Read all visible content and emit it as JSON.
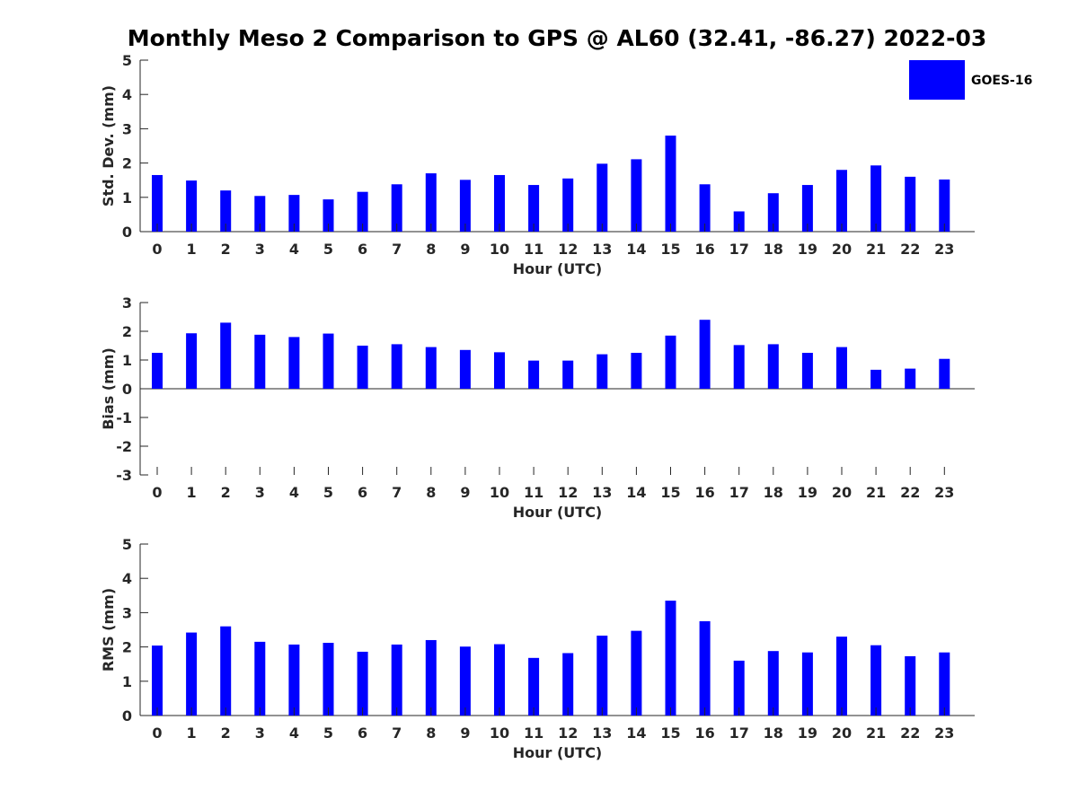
{
  "title": "Monthly Meso 2 Comparison to GPS @ AL60 (32.41, -86.27) 2022-03",
  "legend": {
    "label": "GOES-16",
    "position": "top-right"
  },
  "colors": {
    "bar": "#0000ff",
    "axis": "#262626"
  },
  "chart_data": [
    {
      "type": "bar",
      "categories": [
        "0",
        "1",
        "2",
        "3",
        "4",
        "5",
        "6",
        "7",
        "8",
        "9",
        "10",
        "11",
        "12",
        "13",
        "14",
        "15",
        "16",
        "17",
        "18",
        "19",
        "20",
        "21",
        "22",
        "23"
      ],
      "series": [
        {
          "name": "GOES-16",
          "values": [
            1.65,
            1.49,
            1.2,
            1.04,
            1.07,
            0.94,
            1.16,
            1.38,
            1.7,
            1.51,
            1.65,
            1.36,
            1.55,
            1.98,
            2.11,
            2.8,
            1.38,
            0.59,
            1.12,
            1.36,
            1.8,
            1.93,
            1.6,
            1.52
          ]
        }
      ],
      "xlabel": "Hour (UTC)",
      "ylabel": "Std. Dev. (mm)",
      "ylim": [
        0,
        5
      ],
      "yticks": [
        "0",
        "1",
        "2",
        "3",
        "4",
        "5"
      ],
      "grid": false
    },
    {
      "type": "bar",
      "categories": [
        "0",
        "1",
        "2",
        "3",
        "4",
        "5",
        "6",
        "7",
        "8",
        "9",
        "10",
        "11",
        "12",
        "13",
        "14",
        "15",
        "16",
        "17",
        "18",
        "19",
        "20",
        "21",
        "22",
        "23"
      ],
      "series": [
        {
          "name": "GOES-16",
          "values": [
            1.25,
            1.93,
            2.3,
            1.88,
            1.8,
            1.92,
            1.5,
            1.55,
            1.45,
            1.35,
            1.27,
            0.98,
            0.98,
            1.2,
            1.25,
            1.85,
            2.4,
            1.52,
            1.55,
            1.25,
            1.45,
            0.66,
            0.7,
            1.04
          ]
        }
      ],
      "xlabel": "Hour (UTC)",
      "ylabel": "Bias (mm)",
      "ylim": [
        -3,
        3
      ],
      "yticks": [
        "-3",
        "-2",
        "-1",
        "0",
        "1",
        "2",
        "3"
      ],
      "grid": false
    },
    {
      "type": "bar",
      "categories": [
        "0",
        "1",
        "2",
        "3",
        "4",
        "5",
        "6",
        "7",
        "8",
        "9",
        "10",
        "11",
        "12",
        "13",
        "14",
        "15",
        "16",
        "17",
        "18",
        "19",
        "20",
        "21",
        "22",
        "23"
      ],
      "series": [
        {
          "name": "GOES-16",
          "values": [
            2.04,
            2.42,
            2.6,
            2.15,
            2.07,
            2.12,
            1.86,
            2.07,
            2.2,
            2.01,
            2.08,
            1.68,
            1.82,
            2.33,
            2.47,
            3.35,
            2.75,
            1.6,
            1.88,
            1.84,
            2.3,
            2.05,
            1.73,
            1.84
          ]
        }
      ],
      "xlabel": "Hour (UTC)",
      "ylabel": "RMS (mm)",
      "ylim": [
        0,
        5
      ],
      "yticks": [
        "0",
        "1",
        "2",
        "3",
        "4",
        "5"
      ],
      "grid": false
    }
  ]
}
